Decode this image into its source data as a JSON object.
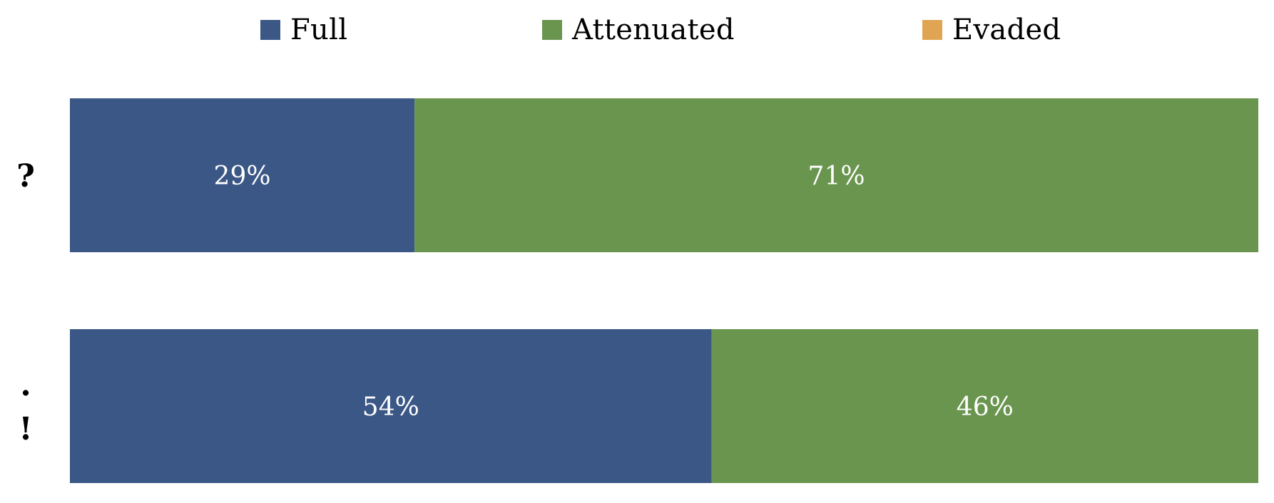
{
  "chart_data": {
    "type": "bar",
    "orientation": "horizontal",
    "stacked": true,
    "categories": [
      "?",
      ".!"
    ],
    "series": [
      {
        "name": "Full",
        "color": "#3B5786",
        "values": [
          29,
          54
        ],
        "labels": [
          "29%",
          "54%"
        ]
      },
      {
        "name": "Attenuated",
        "color": "#6A954F",
        "values": [
          71,
          46
        ],
        "labels": [
          "71%",
          "46%"
        ]
      },
      {
        "name": "Evaded",
        "color": "#E0A552",
        "values": [
          0,
          0
        ],
        "labels": [
          "",
          ""
        ]
      }
    ],
    "xlim": [
      0,
      100
    ],
    "grid": false,
    "legend_position": "top"
  }
}
